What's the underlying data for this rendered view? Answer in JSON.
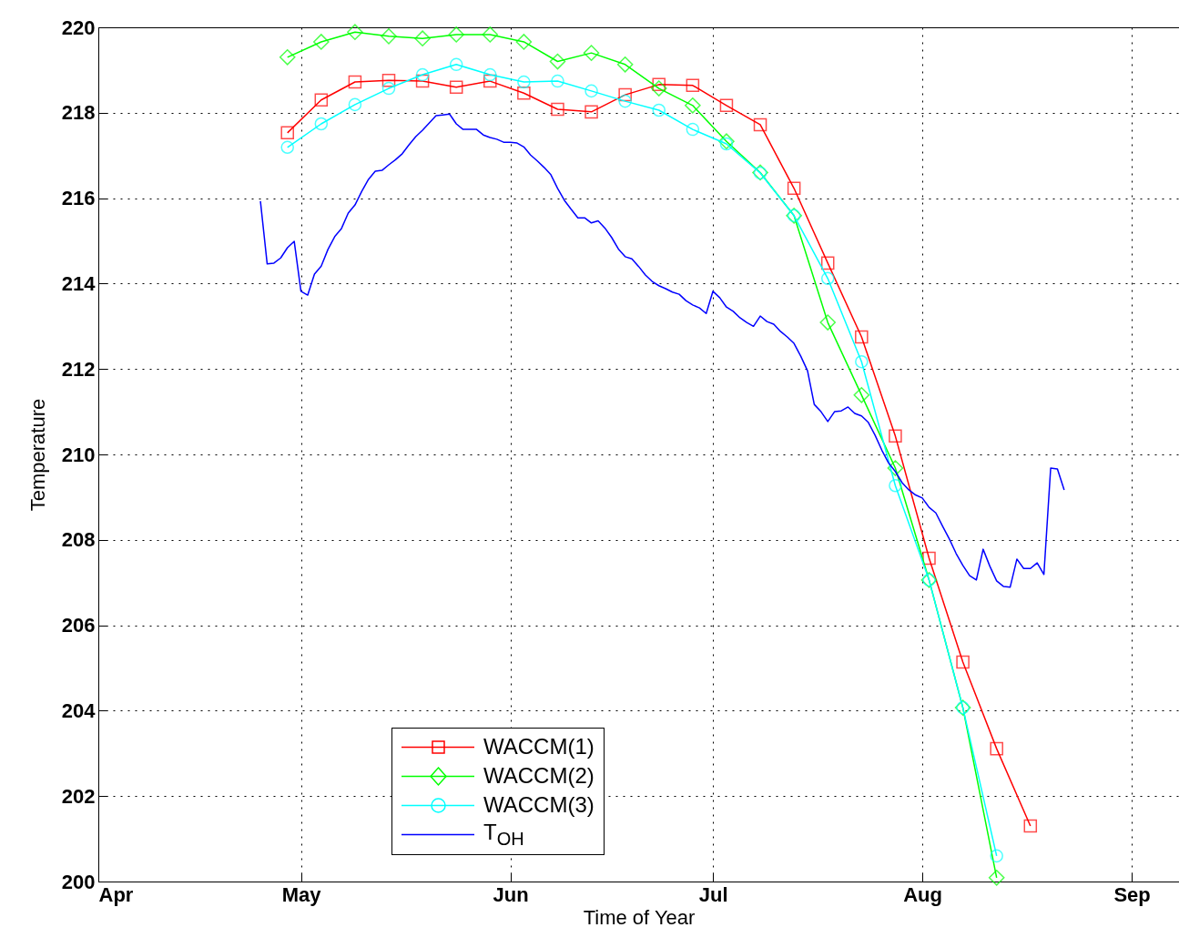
{
  "chart_data": {
    "type": "line",
    "xlabel": "Time of Year",
    "ylabel": "Temperature",
    "xlim": [
      "--04-01",
      "--09-08"
    ],
    "xticks": [
      {
        "value": "--04-01",
        "label": "Apr"
      },
      {
        "value": "--05-01",
        "label": "May"
      },
      {
        "value": "--06-01",
        "label": "Jun"
      },
      {
        "value": "--07-01",
        "label": "Jul"
      },
      {
        "value": "--08-01",
        "label": "Aug"
      },
      {
        "value": "--09-01",
        "label": "Sep"
      }
    ],
    "ylim": [
      200,
      220
    ],
    "yticks": [
      200,
      202,
      204,
      206,
      208,
      210,
      212,
      214,
      216,
      218,
      220
    ],
    "grid": true,
    "legend": "bottom",
    "series": [
      {
        "name": "WACCM(1)",
        "color": "#ff0000",
        "marker": "square",
        "x": [
          "--04-29",
          "--05-04",
          "--05-09",
          "--05-14",
          "--05-19",
          "--05-24",
          "--05-29",
          "--06-03",
          "--06-08",
          "--06-13",
          "--06-18",
          "--06-23",
          "--06-28",
          "--07-03",
          "--07-08",
          "--07-13",
          "--07-18",
          "--07-23",
          "--07-28",
          "--08-02",
          "--08-07",
          "--08-12",
          "--08-17"
        ],
        "values": [
          217.53,
          218.3,
          218.72,
          218.76,
          218.74,
          218.6,
          218.74,
          218.46,
          218.08,
          218.02,
          218.42,
          218.66,
          218.64,
          218.17,
          217.72,
          216.23,
          214.48,
          212.75,
          210.43,
          207.57,
          205.14,
          203.11,
          201.3
        ]
      },
      {
        "name": "WACCM(2)",
        "color": "#00ff00",
        "marker": "diamond",
        "x": [
          "--04-29",
          "--05-04",
          "--05-09",
          "--05-14",
          "--05-19",
          "--05-24",
          "--05-29",
          "--06-03",
          "--06-08",
          "--06-13",
          "--06-18",
          "--06-23",
          "--06-28",
          "--07-03",
          "--07-08",
          "--07-13",
          "--07-18",
          "--07-23",
          "--07-28",
          "--08-02",
          "--08-07",
          "--08-12"
        ],
        "values": [
          219.3,
          219.66,
          219.89,
          219.79,
          219.74,
          219.83,
          219.83,
          219.66,
          219.2,
          219.4,
          219.13,
          218.57,
          218.17,
          217.33,
          216.6,
          215.59,
          213.09,
          211.39,
          209.68,
          207.06,
          204.07,
          200.09
        ]
      },
      {
        "name": "WACCM(3)",
        "color": "#00ffff",
        "marker": "circle",
        "x": [
          "--04-29",
          "--05-04",
          "--05-09",
          "--05-14",
          "--05-19",
          "--05-24",
          "--05-29",
          "--06-03",
          "--06-08",
          "--06-13",
          "--06-18",
          "--06-23",
          "--06-28",
          "--07-03",
          "--07-08",
          "--07-13",
          "--07-18",
          "--07-23",
          "--07-28",
          "--08-02",
          "--08-07",
          "--08-12"
        ],
        "values": [
          217.19,
          217.74,
          218.19,
          218.57,
          218.89,
          219.13,
          218.89,
          218.72,
          218.74,
          218.51,
          218.27,
          218.06,
          217.61,
          217.27,
          216.59,
          215.59,
          214.12,
          212.17,
          209.27,
          207.06,
          204.07,
          200.6
        ]
      },
      {
        "name": "T$_{OH}$",
        "color": "#0000ff",
        "marker": "none",
        "x": [
          "--04-25",
          "--04-26",
          "--04-27",
          "--04-28",
          "--04-29",
          "--04-30",
          "--05-01",
          "--05-02",
          "--05-03",
          "--05-04",
          "--05-05",
          "--05-06",
          "--05-07",
          "--05-08",
          "--05-09",
          "--05-10",
          "--05-11",
          "--05-12",
          "--05-13",
          "--05-14",
          "--05-15",
          "--05-16",
          "--05-17",
          "--05-18",
          "--05-19",
          "--05-20",
          "--05-21",
          "--05-22",
          "--05-23",
          "--05-24",
          "--05-25",
          "--05-26",
          "--05-27",
          "--05-28",
          "--05-29",
          "--05-30",
          "--05-31",
          "--06-01",
          "--06-02",
          "--06-03",
          "--06-04",
          "--06-05",
          "--06-06",
          "--06-07",
          "--06-08",
          "--06-09",
          "--06-10",
          "--06-11",
          "--06-12",
          "--06-13",
          "--06-14",
          "--06-15",
          "--06-16",
          "--06-17",
          "--06-18",
          "--06-19",
          "--06-20",
          "--06-21",
          "--06-22",
          "--06-23",
          "--06-24",
          "--06-25",
          "--06-26",
          "--06-27",
          "--06-28",
          "--06-29",
          "--06-30",
          "--07-01",
          "--07-02",
          "--07-03",
          "--07-04",
          "--07-05",
          "--07-06",
          "--07-07",
          "--07-08",
          "--07-09",
          "--07-10",
          "--07-11",
          "--07-12",
          "--07-13",
          "--07-14",
          "--07-15",
          "--07-16",
          "--07-17",
          "--07-18",
          "--07-19",
          "--07-20",
          "--07-21",
          "--07-22",
          "--07-23",
          "--07-24",
          "--07-25",
          "--07-26",
          "--07-27",
          "--07-28",
          "--07-29",
          "--07-30",
          "--07-31",
          "--08-01",
          "--08-02",
          "--08-03",
          "--08-04",
          "--08-05",
          "--08-06",
          "--08-07",
          "--08-08",
          "--08-09",
          "--08-10",
          "--08-11",
          "--08-12",
          "--08-13",
          "--08-14",
          "--08-15",
          "--08-16",
          "--08-17",
          "--08-18",
          "--08-19",
          "--08-20",
          "--08-21",
          "--08-22"
        ],
        "values": [
          215.93,
          214.46,
          214.48,
          214.6,
          214.84,
          214.99,
          213.82,
          213.73,
          214.22,
          214.41,
          214.8,
          215.1,
          215.29,
          215.65,
          215.84,
          216.16,
          216.44,
          216.63,
          216.65,
          216.78,
          216.9,
          217.04,
          217.25,
          217.44,
          217.59,
          217.76,
          217.93,
          217.95,
          217.97,
          217.74,
          217.61,
          217.61,
          217.61,
          217.48,
          217.42,
          217.38,
          217.31,
          217.31,
          217.29,
          217.2,
          217.01,
          216.87,
          216.72,
          216.55,
          216.23,
          215.95,
          215.74,
          215.54,
          215.54,
          215.42,
          215.47,
          215.3,
          215.08,
          214.81,
          214.63,
          214.58,
          214.4,
          214.2,
          214.05,
          213.95,
          213.88,
          213.8,
          213.75,
          213.6,
          213.5,
          213.43,
          213.3,
          213.82,
          213.67,
          213.45,
          213.35,
          213.2,
          213.09,
          213.0,
          213.24,
          213.11,
          213.05,
          212.88,
          212.75,
          212.6,
          212.3,
          211.96,
          211.17,
          211.0,
          210.77,
          211.0,
          211.02,
          211.11,
          210.96,
          210.9,
          210.75,
          210.45,
          210.1,
          209.8,
          209.6,
          209.34,
          209.17,
          209.05,
          208.98,
          208.76,
          208.63,
          208.32,
          208.02,
          207.68,
          207.4,
          207.16,
          207.06,
          207.78,
          207.38,
          207.04,
          206.91,
          206.89,
          207.55,
          207.33,
          207.33,
          207.46,
          207.19,
          209.68,
          209.66,
          209.17
        ]
      }
    ]
  }
}
